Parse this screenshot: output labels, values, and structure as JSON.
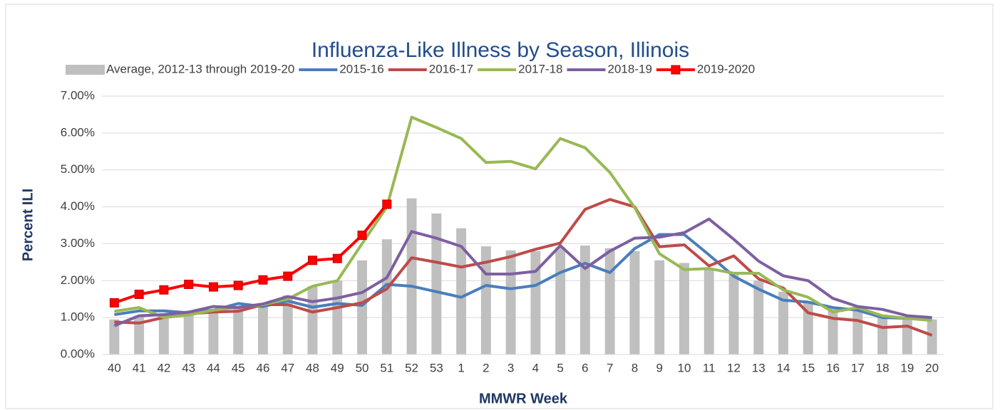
{
  "chart_data": {
    "type": "bar-line",
    "title": "Influenza-Like Illness by Season, Illinois",
    "x_label": "MMWR Week",
    "y_label": "Percent ILI",
    "categories": [
      "40",
      "41",
      "42",
      "43",
      "44",
      "45",
      "46",
      "47",
      "48",
      "49",
      "50",
      "51",
      "52",
      "53",
      "1",
      "2",
      "3",
      "4",
      "5",
      "6",
      "7",
      "8",
      "9",
      "10",
      "11",
      "12",
      "13",
      "14",
      "15",
      "16",
      "17",
      "18",
      "19",
      "20"
    ],
    "series": [
      {
        "name": "Average, 2012-13 through 2019-20",
        "type": "bar",
        "color": "#bfbfbf",
        "values": [
          0.95,
          1.05,
          1.05,
          1.1,
          1.2,
          1.25,
          1.35,
          1.6,
          1.85,
          2.0,
          2.55,
          3.12,
          4.23,
          3.82,
          3.42,
          2.93,
          2.82,
          2.8,
          2.9,
          2.95,
          2.88,
          2.8,
          2.55,
          2.48,
          2.3,
          2.2,
          2.0,
          1.7,
          1.4,
          1.25,
          1.2,
          1.0,
          0.98,
          0.95
        ]
      },
      {
        "name": "2015-16",
        "type": "line",
        "color": "#4a7ebb",
        "values": [
          1.08,
          1.18,
          1.18,
          1.13,
          1.2,
          1.38,
          1.3,
          1.45,
          1.28,
          1.38,
          1.33,
          1.9,
          1.85,
          1.7,
          1.55,
          1.87,
          1.78,
          1.87,
          2.22,
          2.47,
          2.22,
          2.87,
          3.25,
          3.25,
          2.7,
          2.12,
          1.77,
          1.47,
          1.42,
          1.27,
          1.2,
          1.0,
          0.98,
          0.97
        ]
      },
      {
        "name": "2016-17",
        "type": "line",
        "color": "#be4b48",
        "values": [
          0.88,
          0.85,
          1.0,
          1.1,
          1.15,
          1.17,
          1.35,
          1.35,
          1.15,
          1.27,
          1.4,
          1.78,
          2.62,
          2.5,
          2.37,
          2.5,
          2.65,
          2.85,
          3.02,
          3.93,
          4.2,
          4.0,
          2.92,
          2.97,
          2.4,
          2.67,
          2.05,
          1.8,
          1.13,
          0.98,
          0.92,
          0.73,
          0.77,
          0.52
        ]
      },
      {
        "name": "2017-18",
        "type": "line",
        "color": "#98b954",
        "values": [
          1.17,
          1.27,
          1.0,
          1.07,
          1.2,
          1.28,
          1.35,
          1.5,
          1.85,
          2.0,
          3.0,
          4.0,
          6.43,
          6.15,
          5.85,
          5.2,
          5.23,
          5.03,
          5.85,
          5.6,
          4.93,
          3.98,
          2.73,
          2.3,
          2.33,
          2.2,
          2.2,
          1.75,
          1.55,
          1.15,
          1.27,
          1.05,
          0.98,
          0.92
        ]
      },
      {
        "name": "2018-19",
        "type": "line",
        "color": "#7d60a0",
        "values": [
          0.78,
          1.05,
          1.08,
          1.15,
          1.3,
          1.27,
          1.37,
          1.57,
          1.43,
          1.53,
          1.68,
          2.08,
          3.33,
          3.15,
          2.93,
          2.18,
          2.18,
          2.25,
          2.95,
          2.33,
          2.8,
          3.15,
          3.18,
          3.3,
          3.67,
          3.12,
          2.53,
          2.13,
          2.0,
          1.52,
          1.3,
          1.22,
          1.05,
          1.0
        ]
      },
      {
        "name": "2019-2020",
        "type": "line",
        "color": "#ff0000",
        "marker": "square",
        "values": [
          1.4,
          1.63,
          1.75,
          1.9,
          1.83,
          1.87,
          2.02,
          2.12,
          2.55,
          2.6,
          3.23,
          4.07,
          null,
          null,
          null,
          null,
          null,
          null,
          null,
          null,
          null,
          null,
          null,
          null,
          null,
          null,
          null,
          null,
          null,
          null,
          null,
          null,
          null,
          null
        ]
      }
    ],
    "ylim": [
      0,
      7
    ],
    "yticks": [
      {
        "value": 0,
        "label": "0.00%"
      },
      {
        "value": 1,
        "label": "1.00%"
      },
      {
        "value": 2,
        "label": "2.00%"
      },
      {
        "value": 3,
        "label": "3.00%"
      },
      {
        "value": 4,
        "label": "4.00%"
      },
      {
        "value": 5,
        "label": "5.00%"
      },
      {
        "value": 6,
        "label": "6.00%"
      },
      {
        "value": 7,
        "label": "7.00%"
      }
    ],
    "grid": true,
    "legend": "top"
  }
}
